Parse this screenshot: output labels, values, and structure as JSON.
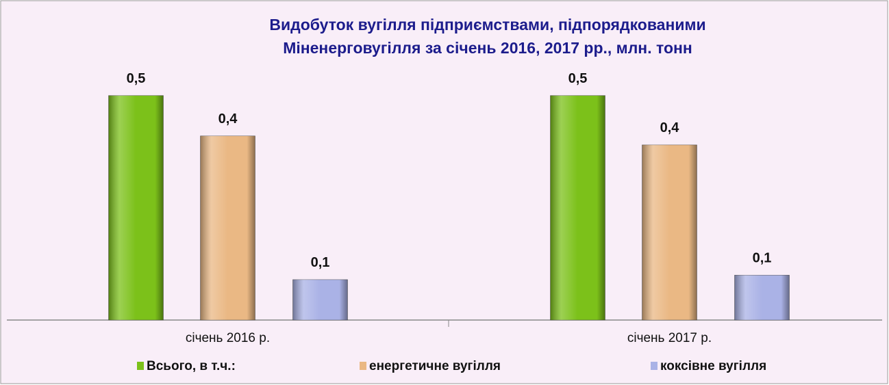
{
  "chart_data": {
    "type": "bar",
    "title": "Видобуток вугілля підприємствами, підпорядкованими",
    "subtitle": "Міненерговугілля за січень 2016, 2017 рр., млн. тонн",
    "categories": [
      "січень 2016 р.",
      "січень 2017 р."
    ],
    "series": [
      {
        "name": "Всього, в т.ч.:",
        "color": "#7cc11a",
        "values": [
          0.5,
          0.5
        ],
        "value_labels": [
          "0,5",
          "0,5"
        ]
      },
      {
        "name": "енергетичне вугілля",
        "color": "#eab884",
        "values": [
          0.41,
          0.39
        ],
        "value_labels": [
          "0,4",
          "0,4"
        ]
      },
      {
        "name": "коксівне вугілля",
        "color": "#aab2e6",
        "values": [
          0.09,
          0.1
        ],
        "value_labels": [
          "0,1",
          "0,1"
        ]
      }
    ],
    "ylim": [
      0,
      0.6
    ],
    "legend": "bottom"
  }
}
